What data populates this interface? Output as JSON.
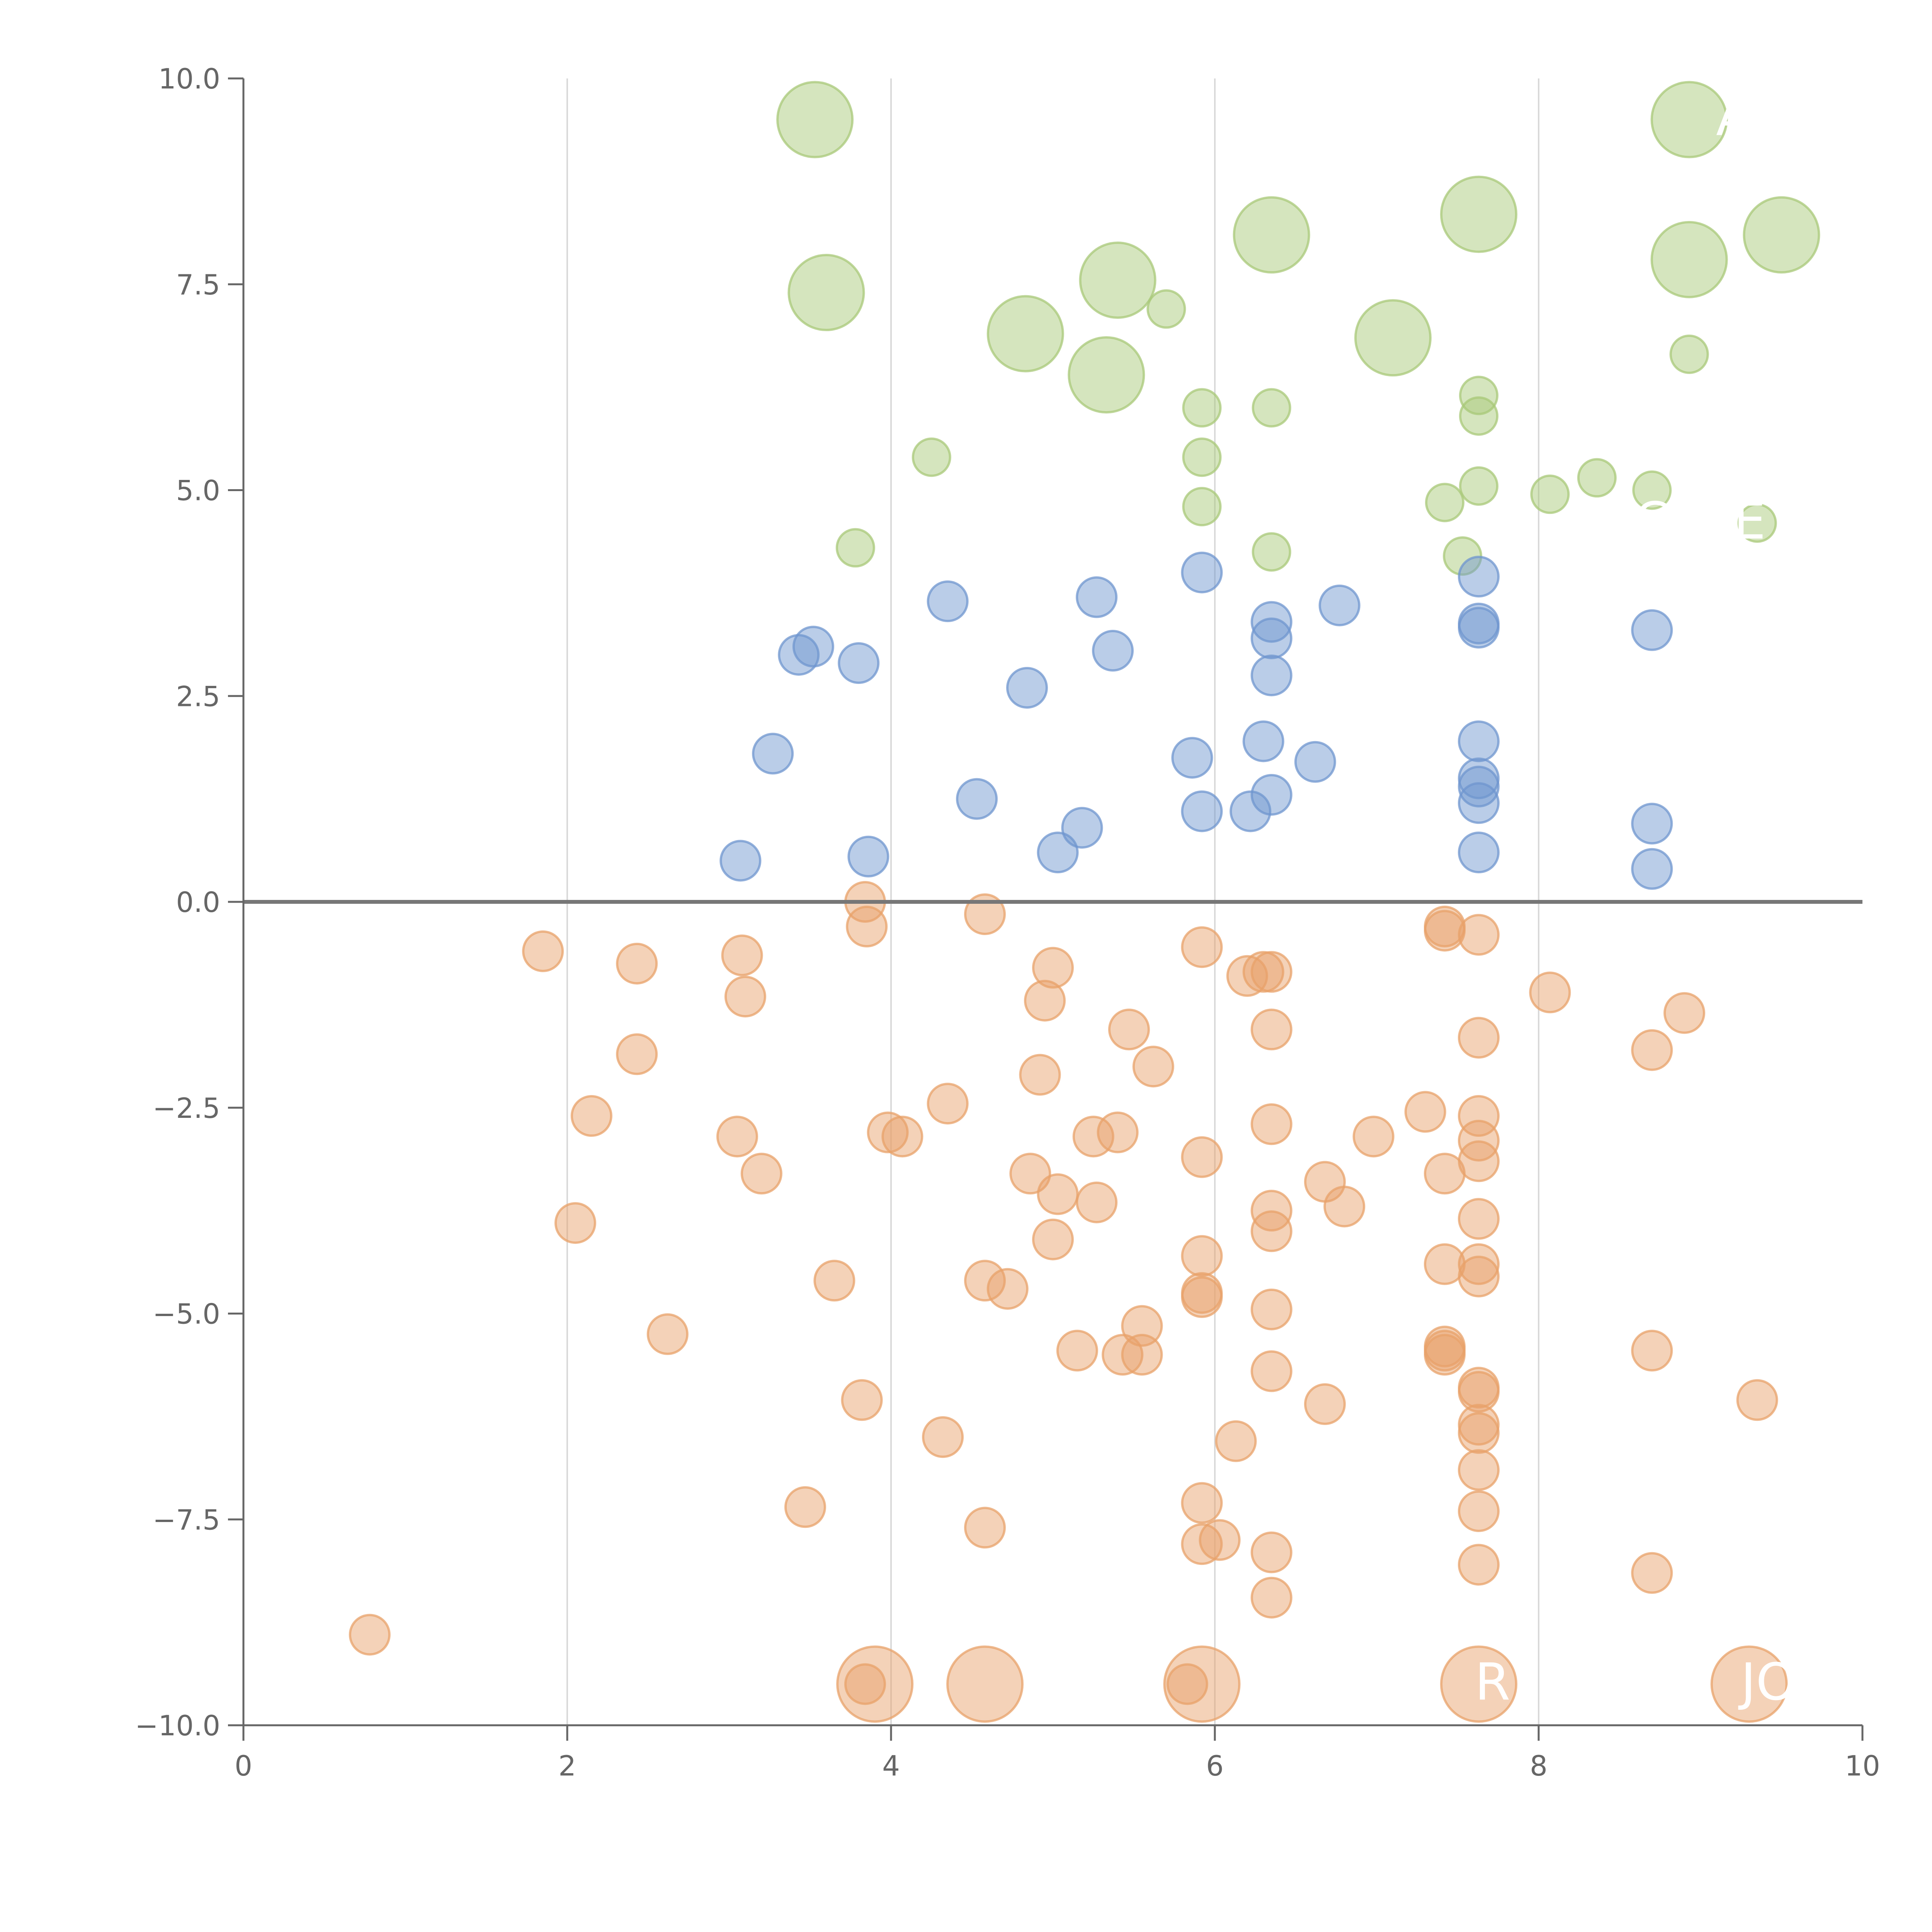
{
  "chart_data": {
    "type": "scatter",
    "title": "",
    "xlabel": "",
    "ylabel": "",
    "xlim": [
      0,
      10
    ],
    "ylim": [
      -10,
      10
    ],
    "xticks": [
      "0",
      "2",
      "4",
      "6",
      "8",
      "10"
    ],
    "yticks": [
      "10.0",
      "7.5",
      "5.0",
      "2.5",
      "0.0",
      "−2.5",
      "−5.0",
      "−7.5",
      "−10.0"
    ],
    "xtick_values": [
      0,
      2,
      4,
      6,
      8,
      10
    ],
    "ytick_values": [
      10,
      7.5,
      5,
      2.5,
      0,
      -2.5,
      -5,
      -7.5,
      -10
    ],
    "grid": "vertical only",
    "reference_line_y": 0,
    "annotations": [
      "R",
      "JO",
      "A",
      "C",
      "KE"
    ],
    "colors": {
      "green": "#a8c878",
      "blue": "#6f96cf",
      "orange": "#e8a16a",
      "axis": "#666666",
      "grid": "#d9d9d9",
      "zero_line": "#777777"
    },
    "series": [
      {
        "color": "green",
        "points": [
          {
            "x": 3.53,
            "y": 9.5,
            "size": "large"
          },
          {
            "x": 3.6,
            "y": 7.4,
            "size": "large"
          },
          {
            "x": 4.83,
            "y": 6.9,
            "size": "large"
          },
          {
            "x": 5.33,
            "y": 6.4,
            "size": "large"
          },
          {
            "x": 5.4,
            "y": 7.55,
            "size": "large"
          },
          {
            "x": 6.35,
            "y": 8.1,
            "size": "large"
          },
          {
            "x": 7.1,
            "y": 6.85,
            "size": "large"
          },
          {
            "x": 7.63,
            "y": 8.35,
            "size": "large"
          },
          {
            "x": 8.93,
            "y": 9.5,
            "size": "large"
          },
          {
            "x": 8.93,
            "y": 7.8,
            "size": "large"
          },
          {
            "x": 9.5,
            "y": 8.1,
            "size": "large"
          },
          {
            "x": 3.78,
            "y": 4.3,
            "size": "small"
          },
          {
            "x": 4.25,
            "y": 5.4,
            "size": "small"
          },
          {
            "x": 5.7,
            "y": 7.2,
            "size": "small"
          },
          {
            "x": 5.92,
            "y": 6.0,
            "size": "small"
          },
          {
            "x": 5.92,
            "y": 5.4,
            "size": "small"
          },
          {
            "x": 5.92,
            "y": 4.8,
            "size": "small"
          },
          {
            "x": 6.35,
            "y": 6.0,
            "size": "small"
          },
          {
            "x": 6.35,
            "y": 4.25,
            "size": "small"
          },
          {
            "x": 7.42,
            "y": 4.85,
            "size": "small"
          },
          {
            "x": 7.53,
            "y": 4.2,
            "size": "small"
          },
          {
            "x": 7.63,
            "y": 6.15,
            "size": "small"
          },
          {
            "x": 7.63,
            "y": 5.9,
            "size": "small"
          },
          {
            "x": 7.63,
            "y": 5.05,
            "size": "small"
          },
          {
            "x": 8.07,
            "y": 4.95,
            "size": "small"
          },
          {
            "x": 8.36,
            "y": 5.15,
            "size": "small"
          },
          {
            "x": 8.7,
            "y": 5.0,
            "size": "small"
          },
          {
            "x": 8.93,
            "y": 6.65,
            "size": "small"
          },
          {
            "x": 9.35,
            "y": 4.6,
            "size": "small"
          }
        ]
      },
      {
        "color": "blue",
        "points": [
          {
            "x": 3.07,
            "y": 0.5
          },
          {
            "x": 3.27,
            "y": 1.8
          },
          {
            "x": 3.43,
            "y": 3.0
          },
          {
            "x": 3.52,
            "y": 3.1
          },
          {
            "x": 3.8,
            "y": 2.9
          },
          {
            "x": 3.86,
            "y": 0.55
          },
          {
            "x": 4.35,
            "y": 3.65
          },
          {
            "x": 4.53,
            "y": 1.25
          },
          {
            "x": 4.84,
            "y": 2.6
          },
          {
            "x": 5.03,
            "y": 0.6
          },
          {
            "x": 5.18,
            "y": 0.9
          },
          {
            "x": 5.27,
            "y": 3.7
          },
          {
            "x": 5.37,
            "y": 3.05
          },
          {
            "x": 5.86,
            "y": 1.75
          },
          {
            "x": 5.92,
            "y": 4.0
          },
          {
            "x": 5.92,
            "y": 1.1
          },
          {
            "x": 6.22,
            "y": 1.1
          },
          {
            "x": 6.3,
            "y": 1.95
          },
          {
            "x": 6.35,
            "y": 3.4
          },
          {
            "x": 6.35,
            "y": 3.2
          },
          {
            "x": 6.35,
            "y": 2.75
          },
          {
            "x": 6.35,
            "y": 1.3
          },
          {
            "x": 6.62,
            "y": 1.7
          },
          {
            "x": 6.77,
            "y": 3.6
          },
          {
            "x": 7.63,
            "y": 3.95
          },
          {
            "x": 7.63,
            "y": 3.38
          },
          {
            "x": 7.63,
            "y": 3.33
          },
          {
            "x": 7.63,
            "y": 1.95
          },
          {
            "x": 7.63,
            "y": 1.5
          },
          {
            "x": 7.63,
            "y": 1.4
          },
          {
            "x": 7.63,
            "y": 1.2
          },
          {
            "x": 7.63,
            "y": 0.6
          },
          {
            "x": 8.7,
            "y": 3.3
          },
          {
            "x": 8.7,
            "y": 0.95
          },
          {
            "x": 8.7,
            "y": 0.4
          }
        ]
      },
      {
        "color": "orange",
        "points": [
          {
            "x": 3.9,
            "y": -9.5,
            "size": "large"
          },
          {
            "x": 4.58,
            "y": -9.5,
            "size": "large"
          },
          {
            "x": 5.92,
            "y": -9.5,
            "size": "large"
          },
          {
            "x": 7.63,
            "y": -9.5,
            "size": "large"
          },
          {
            "x": 9.3,
            "y": -9.5,
            "size": "large"
          },
          {
            "x": 0.78,
            "y": -8.9
          },
          {
            "x": 1.85,
            "y": -0.6
          },
          {
            "x": 2.05,
            "y": -3.9
          },
          {
            "x": 2.15,
            "y": -2.6
          },
          {
            "x": 2.43,
            "y": -0.75
          },
          {
            "x": 2.43,
            "y": -1.85
          },
          {
            "x": 2.62,
            "y": -5.25
          },
          {
            "x": 3.05,
            "y": -2.85
          },
          {
            "x": 3.08,
            "y": -0.65
          },
          {
            "x": 3.1,
            "y": -1.15
          },
          {
            "x": 3.2,
            "y": -3.3
          },
          {
            "x": 3.47,
            "y": -7.35
          },
          {
            "x": 3.65,
            "y": -4.6
          },
          {
            "x": 3.82,
            "y": -6.05
          },
          {
            "x": 3.84,
            "y": 0.0
          },
          {
            "x": 3.85,
            "y": -0.3
          },
          {
            "x": 3.84,
            "y": -9.5
          },
          {
            "x": 3.98,
            "y": -2.8
          },
          {
            "x": 4.07,
            "y": -2.85
          },
          {
            "x": 4.32,
            "y": -6.5
          },
          {
            "x": 4.35,
            "y": -2.45
          },
          {
            "x": 4.58,
            "y": -0.15
          },
          {
            "x": 4.58,
            "y": -4.6
          },
          {
            "x": 4.58,
            "y": -7.6
          },
          {
            "x": 4.72,
            "y": -4.7
          },
          {
            "x": 4.86,
            "y": -3.3
          },
          {
            "x": 4.92,
            "y": -2.1
          },
          {
            "x": 4.95,
            "y": -1.2
          },
          {
            "x": 5.0,
            "y": -0.8
          },
          {
            "x": 5.0,
            "y": -4.1
          },
          {
            "x": 5.03,
            "y": -3.55
          },
          {
            "x": 5.15,
            "y": -5.45
          },
          {
            "x": 5.25,
            "y": -2.85
          },
          {
            "x": 5.27,
            "y": -3.65
          },
          {
            "x": 5.4,
            "y": -2.8
          },
          {
            "x": 5.43,
            "y": -5.5
          },
          {
            "x": 5.47,
            "y": -1.55
          },
          {
            "x": 5.55,
            "y": -5.15
          },
          {
            "x": 5.55,
            "y": -5.5
          },
          {
            "x": 5.62,
            "y": -2.0
          },
          {
            "x": 5.83,
            "y": -9.5
          },
          {
            "x": 5.92,
            "y": -0.55
          },
          {
            "x": 5.92,
            "y": -3.1
          },
          {
            "x": 5.92,
            "y": -4.3
          },
          {
            "x": 5.92,
            "y": -4.75
          },
          {
            "x": 5.92,
            "y": -4.8
          },
          {
            "x": 5.92,
            "y": -7.3
          },
          {
            "x": 5.92,
            "y": -7.8
          },
          {
            "x": 6.03,
            "y": -7.75
          },
          {
            "x": 6.13,
            "y": -6.55
          },
          {
            "x": 6.2,
            "y": -0.9
          },
          {
            "x": 6.3,
            "y": -0.85
          },
          {
            "x": 6.35,
            "y": -0.85
          },
          {
            "x": 6.35,
            "y": -1.55
          },
          {
            "x": 6.35,
            "y": -2.7
          },
          {
            "x": 6.35,
            "y": -3.75
          },
          {
            "x": 6.35,
            "y": -4.0
          },
          {
            "x": 6.35,
            "y": -4.95
          },
          {
            "x": 6.35,
            "y": -5.7
          },
          {
            "x": 6.35,
            "y": -7.9
          },
          {
            "x": 6.35,
            "y": -8.45
          },
          {
            "x": 6.68,
            "y": -3.4
          },
          {
            "x": 6.68,
            "y": -6.1
          },
          {
            "x": 6.8,
            "y": -3.7
          },
          {
            "x": 6.98,
            "y": -2.85
          },
          {
            "x": 7.3,
            "y": -2.55
          },
          {
            "x": 7.42,
            "y": -0.3
          },
          {
            "x": 7.42,
            "y": -0.35
          },
          {
            "x": 7.42,
            "y": -3.3
          },
          {
            "x": 7.42,
            "y": -4.4
          },
          {
            "x": 7.42,
            "y": -5.4
          },
          {
            "x": 7.42,
            "y": -5.45
          },
          {
            "x": 7.42,
            "y": -5.5
          },
          {
            "x": 7.63,
            "y": -0.4
          },
          {
            "x": 7.63,
            "y": -1.65
          },
          {
            "x": 7.63,
            "y": -2.6
          },
          {
            "x": 7.63,
            "y": -2.9
          },
          {
            "x": 7.63,
            "y": -3.15
          },
          {
            "x": 7.63,
            "y": -3.85
          },
          {
            "x": 7.63,
            "y": -4.4
          },
          {
            "x": 7.63,
            "y": -4.55
          },
          {
            "x": 7.63,
            "y": -5.9
          },
          {
            "x": 7.63,
            "y": -5.95
          },
          {
            "x": 7.63,
            "y": -6.35
          },
          {
            "x": 7.63,
            "y": -6.45
          },
          {
            "x": 7.63,
            "y": -6.9
          },
          {
            "x": 7.63,
            "y": -7.4
          },
          {
            "x": 7.63,
            "y": -8.05
          },
          {
            "x": 8.07,
            "y": -1.1
          },
          {
            "x": 8.7,
            "y": -1.8
          },
          {
            "x": 8.7,
            "y": -5.45
          },
          {
            "x": 8.7,
            "y": -8.15
          },
          {
            "x": 8.9,
            "y": -1.35
          },
          {
            "x": 9.35,
            "y": -6.05
          }
        ]
      }
    ]
  }
}
